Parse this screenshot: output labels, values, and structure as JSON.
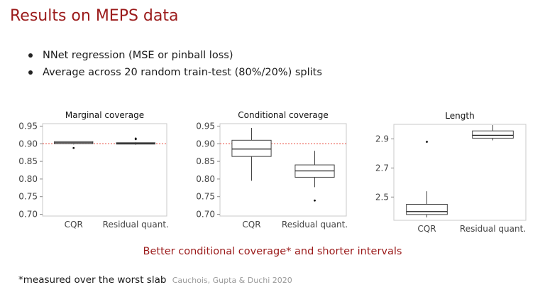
{
  "slide": {
    "title": "Results on MEPS data",
    "bullets": [
      "NNet regression (MSE or pinball loss)",
      "Average across 20 random train-test (80%/20%) splits"
    ],
    "conclusion": "Better conditional coverage* and shorter intervals",
    "footnote": "*measured over the worst slab",
    "citation": "Cauchois, Gupta & Duchi 2020"
  },
  "colors": {
    "accent": "#9b1b1b",
    "reference_line": "#e8483c",
    "box": "#444444"
  },
  "chart_data": [
    {
      "type": "box",
      "title": "Marginal coverage",
      "categories": [
        "CQR",
        "Residual quant."
      ],
      "yticks": [
        "0.70",
        "0.75",
        "0.80",
        "0.85",
        "0.90",
        "0.95"
      ],
      "ylim": [
        0.695,
        0.957
      ],
      "reference_line": 0.9,
      "boxes": [
        {
          "whisker_low": 0.898,
          "q1": 0.9,
          "median": 0.903,
          "q3": 0.906,
          "whisker_high": 0.906,
          "outliers": [
            0.888
          ]
        },
        {
          "whisker_low": 0.897,
          "q1": 0.899,
          "median": 0.901,
          "q3": 0.903,
          "whisker_high": 0.904,
          "outliers": [
            0.913,
            0.915
          ]
        }
      ]
    },
    {
      "type": "box",
      "title": "Conditional coverage",
      "categories": [
        "CQR",
        "Residual quant."
      ],
      "yticks": [
        "0.70",
        "0.75",
        "0.80",
        "0.85",
        "0.90",
        "0.95"
      ],
      "ylim": [
        0.695,
        0.957
      ],
      "reference_line": 0.9,
      "boxes": [
        {
          "whisker_low": 0.795,
          "q1": 0.864,
          "median": 0.885,
          "q3": 0.91,
          "whisker_high": 0.945,
          "outliers": []
        },
        {
          "whisker_low": 0.777,
          "q1": 0.805,
          "median": 0.823,
          "q3": 0.84,
          "whisker_high": 0.88,
          "outliers": [
            0.739
          ]
        }
      ]
    },
    {
      "type": "box",
      "title": "Length",
      "categories": [
        "CQR",
        "Residual quant."
      ],
      "yticks": [
        "2.5",
        "2.7",
        "2.9"
      ],
      "ylim": [
        2.34,
        3.0
      ],
      "reference_line": null,
      "boxes": [
        {
          "whisker_low": 2.36,
          "q1": 2.38,
          "median": 2.4,
          "q3": 2.45,
          "whisker_high": 2.54,
          "outliers": [
            2.88
          ]
        },
        {
          "whisker_low": 2.89,
          "q1": 2.905,
          "median": 2.925,
          "q3": 2.955,
          "whisker_high": 2.995,
          "outliers": []
        }
      ]
    }
  ]
}
